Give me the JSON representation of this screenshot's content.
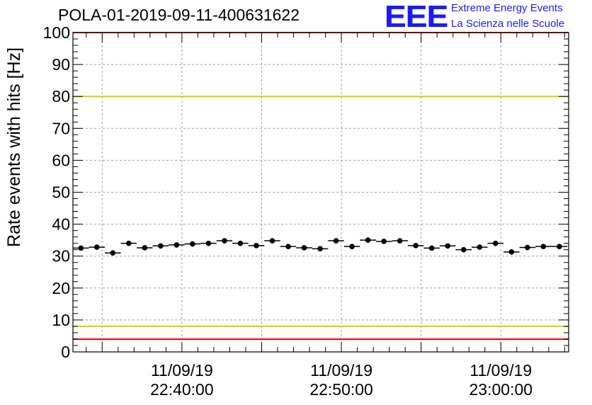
{
  "header": {
    "title": "POLA-01-2019-09-11-400631622",
    "logo_text": "EEE",
    "tagline_1": "Extreme Energy Events",
    "tagline_2": "La Scienza nelle Scuole"
  },
  "colors": {
    "data": "#000000",
    "limit_red": "#ff0000",
    "limit_yellow": "#e8c800",
    "grid": "#a0a0a0",
    "logo_blue": "#1a1aff"
  },
  "chart_data": {
    "type": "scatter",
    "title": "POLA-01-2019-09-11-400631622",
    "xlabel": "",
    "ylabel": "Rate events with hits [Hz]",
    "ylim": [
      0,
      100
    ],
    "xlim": [
      "2019-09-11 22:33:10",
      "2019-09-11 23:04:15"
    ],
    "x_tick_labels": [
      {
        "date": "11/09/19",
        "time": "22:40:00"
      },
      {
        "date": "11/09/19",
        "time": "22:50:00"
      },
      {
        "date": "11/09/19",
        "time": "23:00:00"
      }
    ],
    "y_ticks": [
      0,
      10,
      20,
      30,
      40,
      50,
      60,
      70,
      80,
      90,
      100
    ],
    "grid": true,
    "bin_width_minutes": 1,
    "horizontal_lines": [
      {
        "y": 100,
        "color": "red"
      },
      {
        "y": 80,
        "color": "yellow"
      },
      {
        "y": 8,
        "color": "yellow"
      },
      {
        "y": 4,
        "color": "red"
      }
    ],
    "series": [
      {
        "x": [
          "22:33:40",
          "22:34:40",
          "22:35:40",
          "22:36:40",
          "22:37:40",
          "22:38:40",
          "22:39:40",
          "22:40:40",
          "22:41:40",
          "22:42:40",
          "22:43:40",
          "22:44:40",
          "22:45:40",
          "22:46:40",
          "22:47:40",
          "22:48:40",
          "22:49:40",
          "22:50:40",
          "22:51:40",
          "22:52:40",
          "22:53:40",
          "22:54:40",
          "22:55:40",
          "22:56:40",
          "22:57:40",
          "22:58:40",
          "22:59:40",
          "23:00:40",
          "23:01:40",
          "23:02:40",
          "23:03:40"
        ],
        "y": [
          32.5,
          32.8,
          31.0,
          34.0,
          32.6,
          33.2,
          33.5,
          33.8,
          34.0,
          34.8,
          34.0,
          33.3,
          34.8,
          33.0,
          32.6,
          32.3,
          34.8,
          33.0,
          35.0,
          34.6,
          34.8,
          33.3,
          32.5,
          33.2,
          32.0,
          32.8,
          34.0,
          31.3,
          32.7,
          33.0,
          33.0
        ]
      }
    ]
  }
}
